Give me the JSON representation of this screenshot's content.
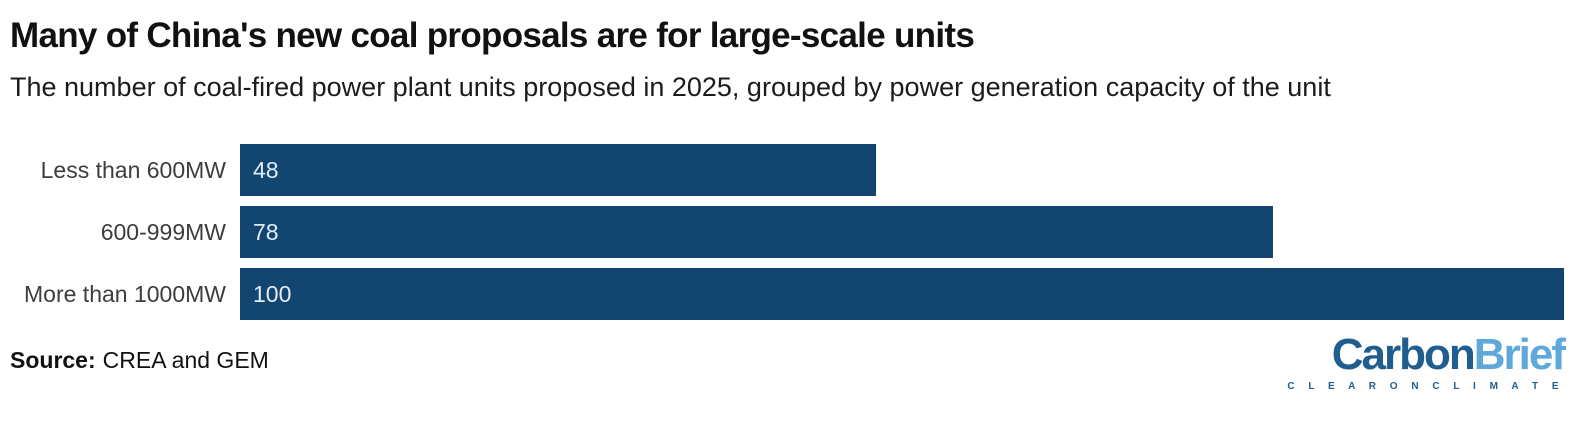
{
  "header": {
    "title": "Many of China's new coal proposals are for large-scale units",
    "subtitle": "The number of coal-fired power plant units proposed in 2025, grouped by power generation capacity of the unit"
  },
  "chart_data": {
    "type": "bar",
    "orientation": "horizontal",
    "title": "Many of China's new coal proposals are for large-scale units",
    "subtitle": "The number of coal-fired power plant units proposed in 2025, grouped by power generation capacity of the unit",
    "categories": [
      "Less than 600MW",
      "600-999MW",
      "More than 1000MW"
    ],
    "values": [
      48,
      78,
      100
    ],
    "xlim": [
      0,
      100
    ],
    "grid": false,
    "legend": "none",
    "data_labels_position": "inside-start",
    "bar_color": "#124671",
    "value_label_color": "#e3ecf4",
    "category_label_color": "#3d3d3d"
  },
  "footer": {
    "source_label": "Source:",
    "source_text": "CREA and GEM"
  },
  "logo": {
    "part1": "Carbon",
    "part2": "Brief",
    "tagline": "C L E A R   O N   C L I M A T E",
    "part1_color": "#1f5e8e",
    "part2_color": "#5fa8dc",
    "tagline_color": "#1f5e8e"
  }
}
